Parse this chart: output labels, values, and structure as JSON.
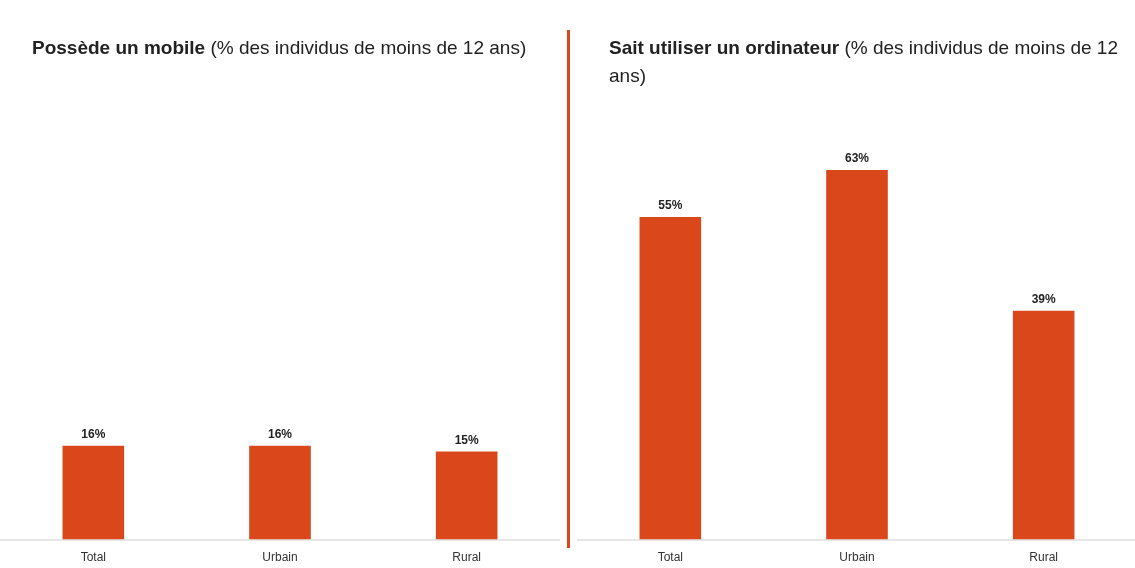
{
  "chart_data": [
    {
      "type": "bar",
      "title": "Possède un mobile",
      "subtitle": "(% des individus de moins de 12 ans)",
      "categories": [
        "Total",
        "Urbain",
        "Rural"
      ],
      "values": [
        16,
        16,
        15
      ],
      "color": "#d9471a",
      "data_labels": true,
      "value_labels": [
        "16%",
        "16%",
        "15%"
      ]
    },
    {
      "type": "bar",
      "title": "Sait utiliser un ordinateur",
      "subtitle": "(% des individus de moins de 12 ans)",
      "categories": [
        "Total",
        "Urbain",
        "Rural"
      ],
      "values": [
        55,
        63,
        39
      ],
      "color": "#d9471a",
      "data_labels": true,
      "value_labels": [
        "55%",
        "63%",
        "39%"
      ]
    }
  ]
}
